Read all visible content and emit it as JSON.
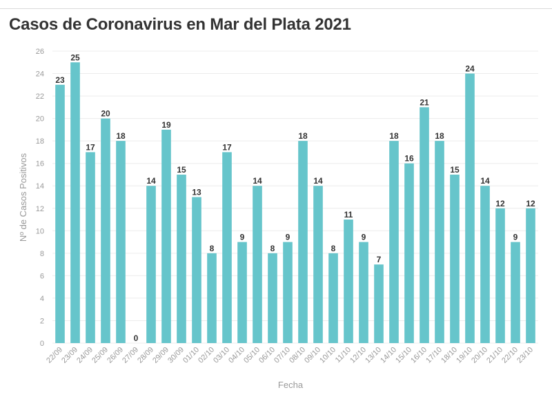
{
  "chart_data": {
    "type": "bar",
    "title": "Casos de Coronavirus en Mar del Plata 2021",
    "xlabel": "Fecha",
    "ylabel": "Nº de Casos Positivos",
    "ylim": [
      0,
      26
    ],
    "yticks": [
      0,
      2,
      4,
      6,
      8,
      10,
      12,
      14,
      16,
      18,
      20,
      22,
      24,
      26
    ],
    "grid": true,
    "bar_color": "#66c5cb",
    "categories": [
      "22/09",
      "23/09",
      "24/09",
      "25/09",
      "26/09",
      "27/09",
      "28/09",
      "29/09",
      "30/09",
      "01/10",
      "02/10",
      "03/10",
      "04/10",
      "05/10",
      "06/10",
      "07/10",
      "08/10",
      "09/10",
      "10/10",
      "11/10",
      "12/10",
      "13/10",
      "14/10",
      "15/10",
      "16/10",
      "17/10",
      "18/10",
      "19/10",
      "20/10",
      "21/10",
      "22/10",
      "23/10"
    ],
    "values": [
      23,
      25,
      17,
      20,
      18,
      0,
      14,
      19,
      15,
      13,
      8,
      17,
      9,
      14,
      8,
      9,
      18,
      14,
      8,
      11,
      9,
      7,
      18,
      16,
      21,
      18,
      15,
      24,
      14,
      12,
      9,
      12
    ]
  }
}
